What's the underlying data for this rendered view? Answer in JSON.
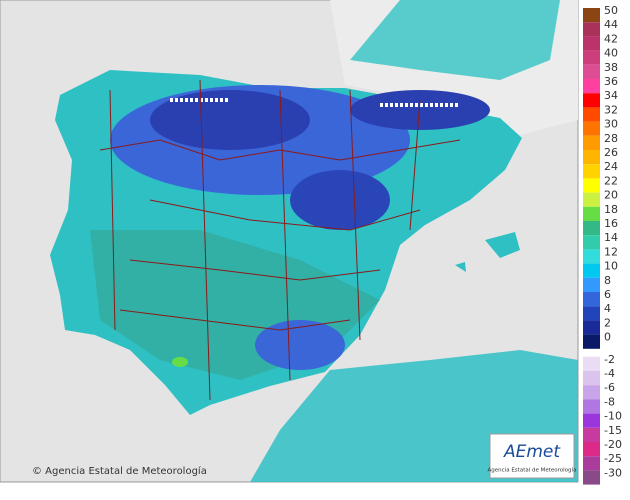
{
  "map": {
    "copyright": "© Agencia Estatal de Meteorología"
  },
  "logo": {
    "name": "AEmet",
    "caption": "Agencia Estatal de Meteorología"
  },
  "legend": [
    {
      "values": [
        50,
        44,
        42,
        40,
        38,
        36,
        34,
        32,
        30,
        28,
        26,
        24,
        22,
        20,
        18,
        16,
        14,
        12,
        10,
        8,
        6,
        4,
        2,
        0
      ],
      "colors": [
        "#8b4513",
        "#a8325a",
        "#bb3368",
        "#cc3f7c",
        "#dd4d94",
        "#ff40a0",
        "#ff0000",
        "#ff4a00",
        "#ff7400",
        "#ff9a00",
        "#ffb400",
        "#ffd200",
        "#ffff00",
        "#ccf040",
        "#66dd44",
        "#33b888",
        "#33ccaa",
        "#33dcdc",
        "#00c8ee",
        "#3399ff",
        "#3366dd",
        "#2244bb",
        "#1a2a99",
        "#0a1a66"
      ]
    },
    {
      "values": [
        -2,
        -4,
        -6,
        -8,
        -10,
        -15,
        -20,
        -25,
        -30
      ],
      "colors": [
        "#eadcf2",
        "#dac4ee",
        "#c8a4e8",
        "#b276e2",
        "#9a36dc",
        "#c93aa0",
        "#dd2a88",
        "#ac3c9c",
        "#8a4a8a"
      ]
    }
  ]
}
